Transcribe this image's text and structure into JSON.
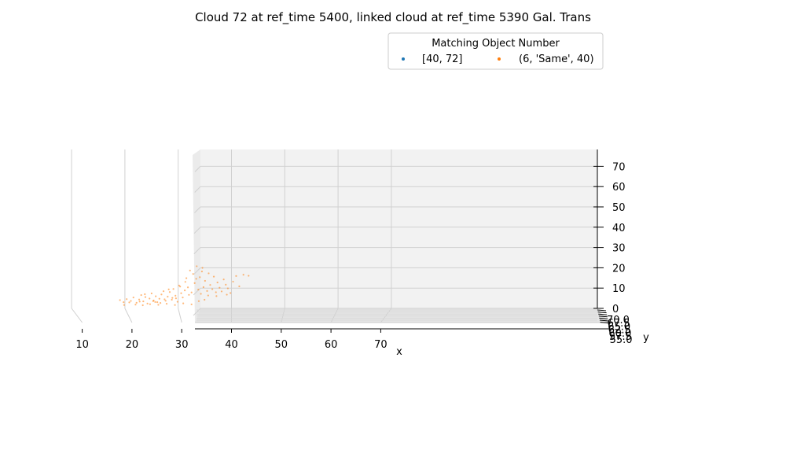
{
  "chart_data": {
    "type": "scatter",
    "projection": "3d",
    "title": "Cloud 72 at ref_time 5400, linked cloud at ref_time 5390 Gal. Trans",
    "xlabel": "x",
    "ylabel": "y",
    "zlabel": "",
    "x_ticks": [
      "10",
      "20",
      "30",
      "40",
      "50",
      "60",
      "70"
    ],
    "y_ticks": [
      "55.0",
      "57.5",
      "60.0",
      "62.5",
      "65.0",
      "67.5",
      "70.0"
    ],
    "z_ticks": [
      "0",
      "10",
      "20",
      "30",
      "40",
      "50",
      "60",
      "70"
    ],
    "xlim": [
      4.5,
      80
    ],
    "zlim": [
      -1,
      78
    ],
    "grid": true,
    "legend": {
      "title": "Matching Object Number",
      "placement": "top-right",
      "entries": [
        {
          "label": "[40, 72]",
          "color": "#1f77b4"
        },
        {
          "label": "(6, 'Same', 40)",
          "color": "#ff7f0e"
        }
      ]
    },
    "series": [
      {
        "name": "[40, 72]",
        "color": "#1f77b4",
        "points": []
      },
      {
        "name": "(6, 'Same', 40)",
        "color": "#ff7f0e",
        "points": [
          [
            18.2,
            2.9
          ],
          [
            18.9,
            1.9
          ],
          [
            19.5,
            3.4
          ],
          [
            20.3,
            2.5
          ],
          [
            20.8,
            4.2
          ],
          [
            21.4,
            1.6
          ],
          [
            21.9,
            3.2
          ],
          [
            22.3,
            5.4
          ],
          [
            22.7,
            2.3
          ],
          [
            23.1,
            4.4
          ],
          [
            23.5,
            1.2
          ],
          [
            23.9,
            3.7
          ],
          [
            24.3,
            6.2
          ],
          [
            24.7,
            2.7
          ],
          [
            25.1,
            4.8
          ],
          [
            25.4,
            1.9
          ],
          [
            25.8,
            3.6
          ],
          [
            26.2,
            5.7
          ],
          [
            26.6,
            7.3
          ],
          [
            27.0,
            2.6
          ],
          [
            27.4,
            4.6
          ],
          [
            27.8,
            6.9
          ],
          [
            28.2,
            3.1
          ],
          [
            28.5,
            8.4
          ],
          [
            28.9,
            5.1
          ],
          [
            29.3,
            2.1
          ],
          [
            29.6,
            10.1
          ],
          [
            30.0,
            6.3
          ],
          [
            30.3,
            4.2
          ],
          [
            30.7,
            7.7
          ],
          [
            31.0,
            13.7
          ],
          [
            31.3,
            9.2
          ],
          [
            31.7,
            17.5
          ],
          [
            32.0,
            6.7
          ],
          [
            32.3,
            15.8
          ],
          [
            32.6,
            11.3
          ],
          [
            33.0,
            19.6
          ],
          [
            33.3,
            8.1
          ],
          [
            33.6,
            14.2
          ],
          [
            34.0,
            17.0
          ],
          [
            34.3,
            9.3
          ],
          [
            34.6,
            12.4
          ],
          [
            35.0,
            7.4
          ],
          [
            35.3,
            16.1
          ],
          [
            35.6,
            10.4
          ],
          [
            36.0,
            8.3
          ],
          [
            36.3,
            14.5
          ],
          [
            36.7,
            6.8
          ],
          [
            37.0,
            11.6
          ],
          [
            37.4,
            9.0
          ],
          [
            37.8,
            7.2
          ],
          [
            38.2,
            13.1
          ],
          [
            38.6,
            10.5
          ],
          [
            39.0,
            8.7
          ],
          [
            39.5,
            6.4
          ],
          [
            40.0,
            12.0
          ],
          [
            40.6,
            14.8
          ],
          [
            41.2,
            9.7
          ],
          [
            42.0,
            15.4
          ],
          [
            43.0,
            14.9
          ],
          [
            21.2,
            0.7
          ],
          [
            22.6,
            0.4
          ],
          [
            24.0,
            0.9
          ],
          [
            25.6,
            0.6
          ],
          [
            27.2,
            1.1
          ],
          [
            28.8,
            0.5
          ],
          [
            30.4,
            1.3
          ],
          [
            32.0,
            0.8
          ],
          [
            19.0,
            0.5
          ],
          [
            26.0,
            1.5
          ],
          [
            24.6,
            2.4
          ],
          [
            23.0,
            5.8
          ],
          [
            27.6,
            8.2
          ],
          [
            29.0,
            3.8
          ],
          [
            31.5,
            5.5
          ],
          [
            33.8,
            6.0
          ],
          [
            35.2,
            5.2
          ],
          [
            36.8,
            4.9
          ],
          [
            38.8,
            5.6
          ],
          [
            34.5,
            3.1
          ],
          [
            30.8,
            11.9
          ],
          [
            32.9,
            13.4
          ],
          [
            34.1,
            18.8
          ],
          [
            29.8,
            9.6
          ],
          [
            25.0,
            2.0
          ],
          [
            22.0,
            2.2
          ],
          [
            20.0,
            1.8
          ],
          [
            26.8,
            3.3
          ],
          [
            28.3,
            4.0
          ],
          [
            33.4,
            2.4
          ]
        ]
      }
    ]
  }
}
